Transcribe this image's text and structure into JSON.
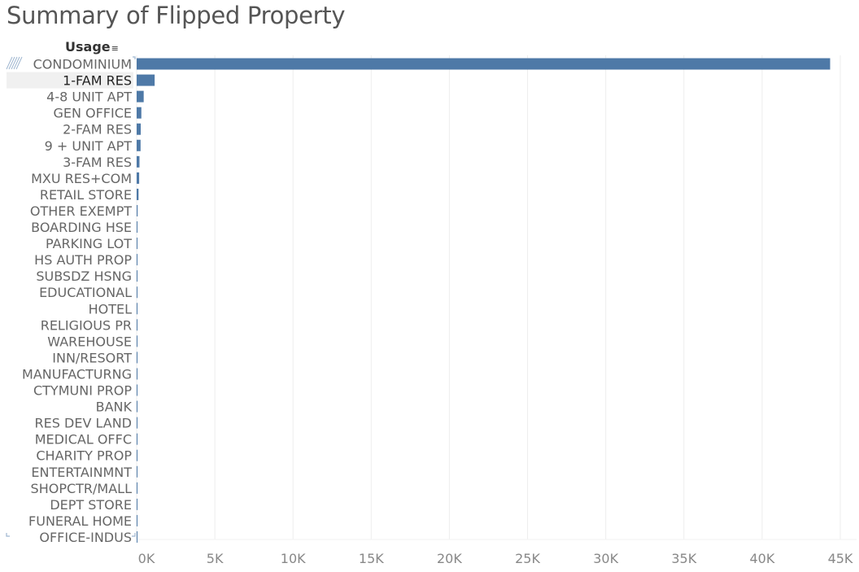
{
  "page": {
    "title": "Summary of Flipped Property",
    "header_label": "Usage",
    "sort_icon": "sort-descending-icon"
  },
  "colors": {
    "bar": "#4e79a7",
    "grid": "#eeeeee",
    "highlight_row": "#f0f0f0"
  },
  "chart_data": {
    "type": "bar",
    "orientation": "horizontal",
    "title": "Summary of Flipped Property",
    "ylabel": "Usage",
    "xlabel": "",
    "xlim": [
      0,
      45000
    ],
    "x_ticks": [
      "0K",
      "5K",
      "10K",
      "15K",
      "20K",
      "25K",
      "30K",
      "35K",
      "40K",
      "45K"
    ],
    "grid": true,
    "selected_category": "1-FAM RES",
    "categories": [
      "CONDOMINIUM",
      "1-FAM RES",
      "4-8 UNIT APT",
      "GEN OFFICE",
      "2-FAM RES",
      "9 + UNIT APT",
      "3-FAM RES",
      "MXU RES+COM",
      "RETAIL STORE",
      "OTHER EXEMPT",
      "BOARDING HSE",
      "PARKING LOT",
      "HS AUTH PROP",
      "SUBSDZ HSNG",
      "EDUCATIONAL",
      "HOTEL",
      "RELIGIOUS PR",
      "WAREHOUSE",
      "INN/RESORT",
      "MANUFACTURNG",
      "CTYMUNI PROP",
      "BANK",
      "RES DEV LAND",
      "MEDICAL OFFC",
      "CHARITY PROP",
      "ENTERTAINMNT",
      "SHOPCTR/MALL",
      "DEPT STORE",
      "FUNERAL HOME",
      "OFFICE-INDUS"
    ],
    "values": [
      44350,
      1150,
      450,
      300,
      260,
      250,
      180,
      160,
      120,
      60,
      15,
      12,
      10,
      9,
      8,
      7,
      6,
      5,
      5,
      4,
      4,
      3,
      3,
      3,
      2,
      2,
      2,
      2,
      1,
      1
    ]
  }
}
